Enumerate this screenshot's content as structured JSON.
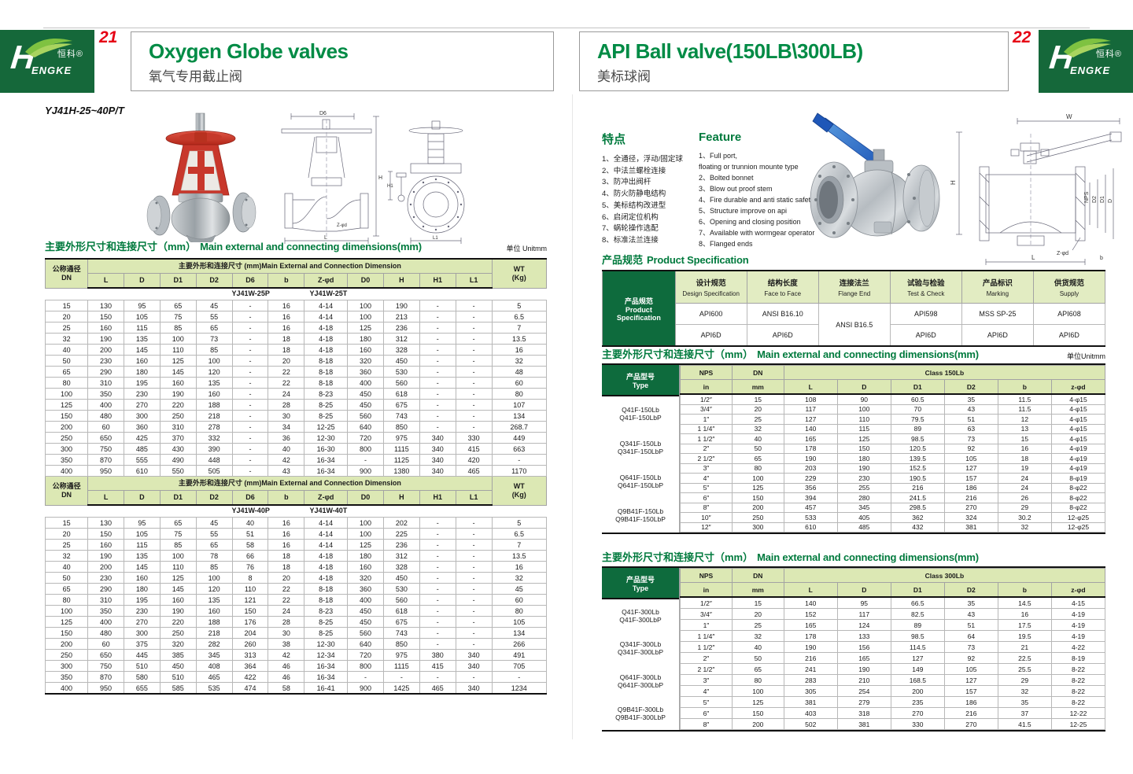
{
  "brand": {
    "en_initial": "H",
    "en_rest": "ENGKE",
    "cn": "恒科®"
  },
  "left_page": {
    "page_number": "21",
    "title": "Oxygen Globe valves",
    "subtitle": "氧气专用截止阀",
    "model": "YJ41H-25~40P/T",
    "dims_title_zh": "主要外形尺寸和连接尺寸（mm）",
    "dims_title_en": "Main external and connecting dimensions(mm)",
    "unit": "单位 Unitmm",
    "table": {
      "dn_header": "公称通径\nDN",
      "group_header": "主要外形和连接尺寸 (mm)Main External and Connection Dimension",
      "wt_header": "WT\n(Kg)",
      "columns": [
        "L",
        "D",
        "D1",
        "D2",
        "D6",
        "b",
        "Z-φd",
        "D0",
        "H",
        "H1",
        "L1"
      ],
      "section1": {
        "variants": [
          "YJ41W-25P",
          "YJ41W-25T"
        ],
        "rows": [
          [
            "15",
            "130",
            "95",
            "65",
            "45",
            "-",
            "16",
            "4-14",
            "100",
            "190",
            "-",
            "-",
            "5"
          ],
          [
            "20",
            "150",
            "105",
            "75",
            "55",
            "-",
            "16",
            "4-14",
            "100",
            "213",
            "-",
            "-",
            "6.5"
          ],
          [
            "25",
            "160",
            "115",
            "85",
            "65",
            "-",
            "16",
            "4-18",
            "125",
            "236",
            "-",
            "-",
            "7"
          ],
          [
            "32",
            "190",
            "135",
            "100",
            "73",
            "-",
            "18",
            "4-18",
            "180",
            "312",
            "-",
            "-",
            "13.5"
          ],
          [
            "40",
            "200",
            "145",
            "110",
            "85",
            "-",
            "18",
            "4-18",
            "160",
            "328",
            "-",
            "-",
            "16"
          ],
          [
            "50",
            "230",
            "160",
            "125",
            "100",
            "-",
            "20",
            "8-18",
            "320",
            "450",
            "-",
            "-",
            "32"
          ],
          [
            "65",
            "290",
            "180",
            "145",
            "120",
            "-",
            "22",
            "8-18",
            "360",
            "530",
            "-",
            "-",
            "48"
          ],
          [
            "80",
            "310",
            "195",
            "160",
            "135",
            "-",
            "22",
            "8-18",
            "400",
            "560",
            "-",
            "-",
            "60"
          ],
          [
            "100",
            "350",
            "230",
            "190",
            "160",
            "-",
            "24",
            "8-23",
            "450",
            "618",
            "-",
            "-",
            "80"
          ],
          [
            "125",
            "400",
            "270",
            "220",
            "188",
            "-",
            "28",
            "8-25",
            "450",
            "675",
            "-",
            "-",
            "107"
          ],
          [
            "150",
            "480",
            "300",
            "250",
            "218",
            "-",
            "30",
            "8-25",
            "560",
            "743",
            "-",
            "-",
            "134"
          ],
          [
            "200",
            "60",
            "360",
            "310",
            "278",
            "-",
            "34",
            "12-25",
            "640",
            "850",
            "-",
            "-",
            "268.7"
          ],
          [
            "250",
            "650",
            "425",
            "370",
            "332",
            "-",
            "36",
            "12-30",
            "720",
            "975",
            "340",
            "330",
            "449"
          ],
          [
            "300",
            "750",
            "485",
            "430",
            "390",
            "-",
            "40",
            "16-30",
            "800",
            "1115",
            "340",
            "415",
            "663"
          ],
          [
            "350",
            "870",
            "555",
            "490",
            "448",
            "-",
            "42",
            "16-34",
            "-",
            "1125",
            "340",
            "420",
            "-"
          ],
          [
            "400",
            "950",
            "610",
            "550",
            "505",
            "-",
            "43",
            "16-34",
            "900",
            "1380",
            "340",
            "465",
            "1170"
          ]
        ]
      },
      "section2": {
        "variants": [
          "YJ41W-40P",
          "YJ41W-40T"
        ],
        "rows": [
          [
            "15",
            "130",
            "95",
            "65",
            "45",
            "40",
            "16",
            "4-14",
            "100",
            "202",
            "-",
            "-",
            "5"
          ],
          [
            "20",
            "150",
            "105",
            "75",
            "55",
            "51",
            "16",
            "4-14",
            "100",
            "225",
            "-",
            "-",
            "6.5"
          ],
          [
            "25",
            "160",
            "115",
            "85",
            "65",
            "58",
            "16",
            "4-14",
            "125",
            "236",
            "-",
            "-",
            "7"
          ],
          [
            "32",
            "190",
            "135",
            "100",
            "78",
            "66",
            "18",
            "4-18",
            "180",
            "312",
            "-",
            "-",
            "13.5"
          ],
          [
            "40",
            "200",
            "145",
            "110",
            "85",
            "76",
            "18",
            "4-18",
            "160",
            "328",
            "-",
            "-",
            "16"
          ],
          [
            "50",
            "230",
            "160",
            "125",
            "100",
            "8",
            "20",
            "4-18",
            "320",
            "450",
            "-",
            "-",
            "32"
          ],
          [
            "65",
            "290",
            "180",
            "145",
            "120",
            "110",
            "22",
            "8-18",
            "360",
            "530",
            "-",
            "-",
            "45"
          ],
          [
            "80",
            "310",
            "195",
            "160",
            "135",
            "121",
            "22",
            "8-18",
            "400",
            "560",
            "-",
            "-",
            "60"
          ],
          [
            "100",
            "350",
            "230",
            "190",
            "160",
            "150",
            "24",
            "8-23",
            "450",
            "618",
            "-",
            "-",
            "80"
          ],
          [
            "125",
            "400",
            "270",
            "220",
            "188",
            "176",
            "28",
            "8-25",
            "450",
            "675",
            "-",
            "-",
            "105"
          ],
          [
            "150",
            "480",
            "300",
            "250",
            "218",
            "204",
            "30",
            "8-25",
            "560",
            "743",
            "-",
            "-",
            "134"
          ],
          [
            "200",
            "60",
            "375",
            "320",
            "282",
            "260",
            "38",
            "12-30",
            "640",
            "850",
            "-",
            "-",
            "266"
          ],
          [
            "250",
            "650",
            "445",
            "385",
            "345",
            "313",
            "42",
            "12-34",
            "720",
            "975",
            "380",
            "340",
            "491"
          ],
          [
            "300",
            "750",
            "510",
            "450",
            "408",
            "364",
            "46",
            "16-34",
            "800",
            "1115",
            "415",
            "340",
            "705"
          ],
          [
            "350",
            "870",
            "580",
            "510",
            "465",
            "422",
            "46",
            "16-34",
            "-",
            "-",
            "-",
            "-",
            "-"
          ],
          [
            "400",
            "950",
            "655",
            "585",
            "535",
            "474",
            "58",
            "16-41",
            "900",
            "1425",
            "465",
            "340",
            "1234"
          ]
        ]
      }
    }
  },
  "right_page": {
    "page_number": "22",
    "title": "API Ball valve(150LB\\300LB)",
    "subtitle": "美标球阀",
    "features_zh": {
      "title": "特点",
      "items": [
        "1、全通径，浮动/固定球",
        "2、中法兰螺栓连接",
        "3、防冲出阀杆",
        "4、防火防静电结构",
        "5、美标结构改进型",
        "6、启闭定位机构",
        "7、蜗轮操作选配",
        "8、标准法兰连接"
      ]
    },
    "features_en": {
      "title": "Feature",
      "items": [
        "1、Full port,\nfloating or trunnion mounte type",
        "2、Bolted bonnet",
        "3、Blow out proof stem",
        "4、Fire durable and anti static safety",
        "5、Structure improve on api",
        "6、Opening and closing position",
        "7、Available with wormgear operator",
        "8、Flanged ends"
      ]
    },
    "spec": {
      "title_zh": "产品规范",
      "title_en": "Product Specification",
      "row_header": "产品规范\nProduct\nSpecification",
      "columns": [
        [
          "设计规范",
          "Design Specification"
        ],
        [
          "结构长度",
          "Face to Face"
        ],
        [
          "连接法兰",
          "Flange End"
        ],
        [
          "试验与检验",
          "Test & Check"
        ],
        [
          "产品标识",
          "Marking"
        ],
        [
          "供货规范",
          "Supply"
        ]
      ],
      "row1": [
        "API600",
        "ANSI B16.10",
        "API598",
        "MSS SP-25",
        "API608"
      ],
      "merged": "ANSI B16.5",
      "row2": [
        "API6D",
        "API6D",
        "API6D",
        "API6D",
        "API6D"
      ]
    },
    "dims150": {
      "title_zh": "主要外形尺寸和连接尺寸（mm）",
      "title_en": "Main external and connecting dimensions(mm)",
      "unit": "单位Unitmm",
      "type_header": "产品型号\nType",
      "nps_header": "NPS",
      "dn_header": "DN",
      "nps_sub": "in",
      "dn_sub": "mm",
      "class_header": "Class 150Lb",
      "columns": [
        "L",
        "D",
        "D1",
        "D2",
        "b",
        "z-φd"
      ],
      "types": [
        "Q41F-150Lb\nQ41F-150LbP",
        "Q341F-150Lb\nQ341F-150LbP",
        "Q641F-150Lb\nQ641F-150LbP",
        "Q9B41F-150Lb\nQ9B41F-150LbP"
      ],
      "rows": [
        [
          "1/2″",
          "15",
          "108",
          "90",
          "60.5",
          "35",
          "11.5",
          "4-φ15"
        ],
        [
          "3/4″",
          "20",
          "117",
          "100",
          "70",
          "43",
          "11.5",
          "4-φ15"
        ],
        [
          "1″",
          "25",
          "127",
          "110",
          "79.5",
          "51",
          "12",
          "4-φ15"
        ],
        [
          "1 1/4″",
          "32",
          "140",
          "115",
          "89",
          "63",
          "13",
          "4-φ15"
        ],
        [
          "1 1/2″",
          "40",
          "165",
          "125",
          "98.5",
          "73",
          "15",
          "4-φ15"
        ],
        [
          "2″",
          "50",
          "178",
          "150",
          "120.5",
          "92",
          "16",
          "4-φ19"
        ],
        [
          "2 1/2″",
          "65",
          "190",
          "180",
          "139.5",
          "105",
          "18",
          "4-φ19"
        ],
        [
          "3″",
          "80",
          "203",
          "190",
          "152.5",
          "127",
          "19",
          "4-φ19"
        ],
        [
          "4″",
          "100",
          "229",
          "230",
          "190.5",
          "157",
          "24",
          "8-φ19"
        ],
        [
          "5″",
          "125",
          "356",
          "255",
          "216",
          "186",
          "24",
          "8-φ22"
        ],
        [
          "6″",
          "150",
          "394",
          "280",
          "241.5",
          "216",
          "26",
          "8-φ22"
        ],
        [
          "8″",
          "200",
          "457",
          "345",
          "298.5",
          "270",
          "29",
          "8-φ22"
        ],
        [
          "10″",
          "250",
          "533",
          "405",
          "362",
          "324",
          "30.2",
          "12-φ25"
        ],
        [
          "12″",
          "300",
          "610",
          "485",
          "432",
          "381",
          "32",
          "12-φ25"
        ]
      ]
    },
    "dims300": {
      "title_zh": "主要外形尺寸和连接尺寸（mm）",
      "title_en": "Main external and connecting dimensions(mm)",
      "type_header": "产品型号\nType",
      "nps_header": "NPS",
      "dn_header": "DN",
      "nps_sub": "in",
      "dn_sub": "mm",
      "class_header": "Class 300Lb",
      "columns": [
        "L",
        "D",
        "D1",
        "D2",
        "b",
        "z-φd"
      ],
      "types": [
        "Q41F-300Lb\nQ41F-300LbP",
        "Q341F-300Lb\nQ341F-300LbP",
        "Q641F-300Lb\nQ641F-300LbP",
        "Q9B41F-300Lb\nQ9B41F-300LbP"
      ],
      "rows": [
        [
          "1/2″",
          "15",
          "140",
          "95",
          "66.5",
          "35",
          "14.5",
          "4-15"
        ],
        [
          "3/4″",
          "20",
          "152",
          "117",
          "82.5",
          "43",
          "16",
          "4-19"
        ],
        [
          "1″",
          "25",
          "165",
          "124",
          "89",
          "51",
          "17.5",
          "4-19"
        ],
        [
          "1 1/4″",
          "32",
          "178",
          "133",
          "98.5",
          "64",
          "19.5",
          "4-19"
        ],
        [
          "1 1/2″",
          "40",
          "190",
          "156",
          "114.5",
          "73",
          "21",
          "4-22"
        ],
        [
          "2″",
          "50",
          "216",
          "165",
          "127",
          "92",
          "22.5",
          "8-19"
        ],
        [
          "2 1/2″",
          "65",
          "241",
          "190",
          "149",
          "105",
          "25.5",
          "8-22"
        ],
        [
          "3″",
          "80",
          "283",
          "210",
          "168.5",
          "127",
          "29",
          "8-22"
        ],
        [
          "4″",
          "100",
          "305",
          "254",
          "200",
          "157",
          "32",
          "8-22"
        ],
        [
          "5″",
          "125",
          "381",
          "279",
          "235",
          "186",
          "35",
          "8-22"
        ],
        [
          "6″",
          "150",
          "403",
          "318",
          "270",
          "216",
          "37",
          "12-22"
        ],
        [
          "8″",
          "200",
          "502",
          "381",
          "330",
          "270",
          "41.5",
          "12-25"
        ]
      ]
    }
  },
  "diagrams": {
    "globe_front": [
      "D6",
      "H",
      "L",
      "Z-φd"
    ],
    "globe_side": [
      "H1",
      "L1"
    ],
    "ball": [
      "W",
      "H",
      "NPS",
      "D2",
      "D1",
      "D",
      "Z-φd",
      "b",
      "L"
    ]
  },
  "colors": {
    "brand_green": "#15683a",
    "title_green": "#008b45",
    "accent_red": "#e60014",
    "table_header_green": "#dce8b4",
    "dark_header_green": "#0e6b3d"
  }
}
